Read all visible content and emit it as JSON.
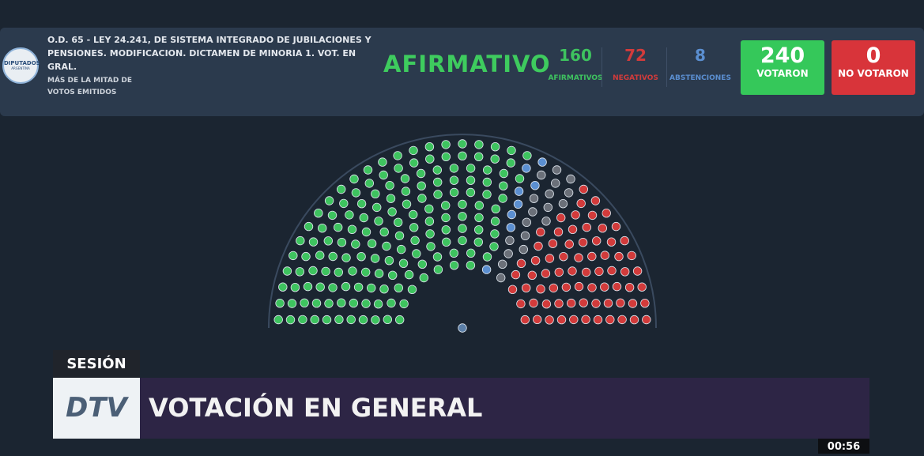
{
  "header": {
    "logo_title": "DIPUTADOS",
    "logo_subtitle": "ARGENTINA",
    "title": "O.D. 65 - LEY 24.241, DE SISTEMA INTEGRADO DE JUBILACIONES Y PENSIONES. MODIFICACION. DICTAMEN DE MINORIA 1. VOT. EN GRAL.",
    "majority": "MÁS DE LA MITAD DE VOTOS EMITIDOS",
    "result": "AFIRMATIVO",
    "tallies": [
      {
        "value": 160,
        "label": "AFIRMATIVOS",
        "color": "#3ec35f"
      },
      {
        "value": 72,
        "label": "NEGATIVOS",
        "color": "#d23b3b"
      },
      {
        "value": 8,
        "label": "ABSTENCIONES",
        "color": "#5b8fd1"
      }
    ],
    "totals": [
      {
        "value": 240,
        "label": "VOTARON",
        "color": "#35c85a"
      },
      {
        "value": 0,
        "label": "NO VOTARON",
        "color": "#d8343a"
      }
    ]
  },
  "banner": {
    "section": "SESIÓN",
    "logo": "DTV",
    "title": "VOTACIÓN EN GENERAL",
    "clock": "00:56"
  }
}
